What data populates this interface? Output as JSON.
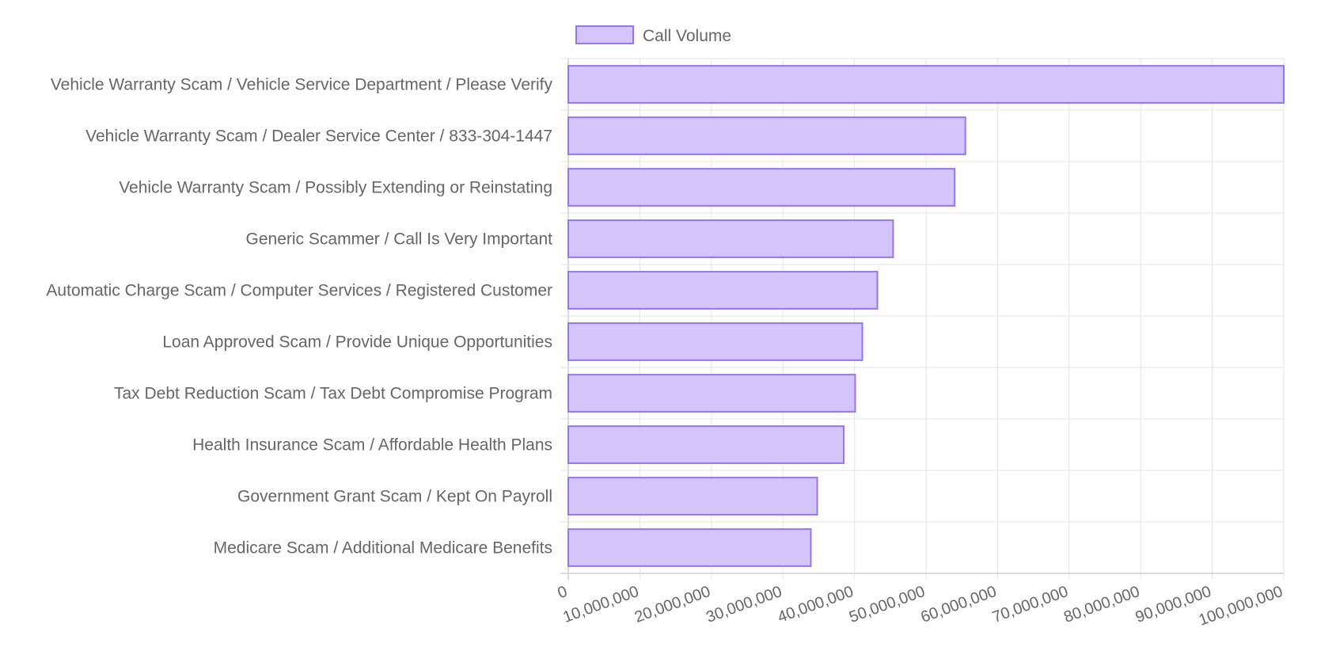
{
  "chart_data": {
    "type": "bar",
    "orientation": "horizontal",
    "categories": [
      "Vehicle Warranty Scam / Vehicle Service Department / Please Verify",
      "Vehicle Warranty Scam / Dealer Service Center / 833-304-1447",
      "Vehicle Warranty Scam / Possibly Extending or Reinstating",
      "Generic Scammer / Call Is Very Important",
      "Automatic Charge Scam / Computer Services / Registered Customer",
      "Loan Approved Scam / Provide Unique Opportunities",
      "Tax Debt Reduction Scam / Tax Debt Compromise Program",
      "Health Insurance Scam / Affordable Health Plans",
      "Government Grant Scam / Kept On Payroll",
      "Medicare Scam / Additional Medicare Benefits"
    ],
    "series": [
      {
        "name": "Call Volume",
        "values": [
          100000000,
          55500000,
          54000000,
          45400000,
          43200000,
          41100000,
          40100000,
          38500000,
          34800000,
          33900000
        ]
      }
    ],
    "xlim": [
      0,
      100000000
    ],
    "xticks": [
      "0",
      "10,000,000",
      "20,000,000",
      "30,000,000",
      "40,000,000",
      "50,000,000",
      "60,000,000",
      "70,000,000",
      "80,000,000",
      "90,000,000",
      "100,000,000"
    ],
    "grid": true,
    "legend_position": "top",
    "colors": {
      "bar_fill": "#d3c4fc",
      "bar_border": "#9775f0"
    }
  }
}
